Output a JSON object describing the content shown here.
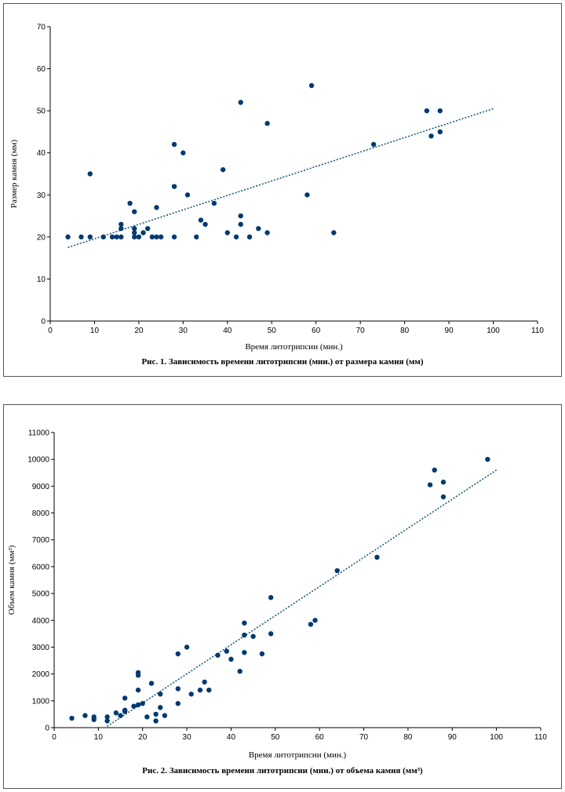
{
  "chart_data": [
    {
      "type": "scatter",
      "title": "Рис. 1. Зависимость времени литотрипсии (мин.) от размера камня (мм)",
      "xlabel": "Время литотрипсии (мин.)",
      "ylabel": "Размер камня (мм)",
      "xlim": [
        0,
        110
      ],
      "ylim": [
        0,
        70
      ],
      "xticks": [
        0,
        10,
        20,
        30,
        40,
        50,
        60,
        70,
        80,
        90,
        100,
        110
      ],
      "yticks": [
        0,
        10,
        20,
        30,
        40,
        50,
        60,
        70
      ],
      "color": "#003a70",
      "points": [
        [
          4,
          20
        ],
        [
          7,
          20
        ],
        [
          9,
          35
        ],
        [
          9,
          20
        ],
        [
          12,
          20
        ],
        [
          14,
          20
        ],
        [
          15,
          20
        ],
        [
          16,
          20
        ],
        [
          16,
          22
        ],
        [
          16,
          23
        ],
        [
          18,
          28
        ],
        [
          19,
          26
        ],
        [
          19,
          22
        ],
        [
          19,
          21
        ],
        [
          19,
          20
        ],
        [
          20,
          20
        ],
        [
          21,
          21
        ],
        [
          22,
          22
        ],
        [
          23,
          20
        ],
        [
          24,
          27
        ],
        [
          24,
          20
        ],
        [
          25,
          20
        ],
        [
          28,
          42
        ],
        [
          28,
          32
        ],
        [
          28,
          20
        ],
        [
          30,
          40
        ],
        [
          31,
          30
        ],
        [
          33,
          20
        ],
        [
          34,
          24
        ],
        [
          35,
          23
        ],
        [
          37,
          28
        ],
        [
          39,
          36
        ],
        [
          40,
          21
        ],
        [
          42,
          20
        ],
        [
          43,
          52
        ],
        [
          43,
          25
        ],
        [
          43,
          23
        ],
        [
          45,
          20
        ],
        [
          47,
          22
        ],
        [
          49,
          47
        ],
        [
          49,
          21
        ],
        [
          58,
          30
        ],
        [
          59,
          56
        ],
        [
          64,
          21
        ],
        [
          73,
          42
        ],
        [
          85,
          50
        ],
        [
          86,
          44
        ],
        [
          88,
          50
        ],
        [
          88,
          45
        ]
      ],
      "trendline": [
        [
          4,
          17.5
        ],
        [
          100,
          50.5
        ]
      ]
    },
    {
      "type": "scatter",
      "title": "Рис. 2. Зависимость времени литотрипсии (мин.) от объема камня (мм³)",
      "xlabel": "Время литотрипсии (мин.)",
      "ylabel": "Объем камня (мм³)",
      "xlim": [
        0,
        110
      ],
      "ylim": [
        0,
        11000
      ],
      "xticks": [
        0,
        10,
        20,
        30,
        40,
        50,
        60,
        70,
        80,
        90,
        100,
        110
      ],
      "yticks": [
        0,
        1000,
        2000,
        3000,
        4000,
        5000,
        6000,
        7000,
        8000,
        9000,
        10000,
        11000
      ],
      "color": "#003a70",
      "points": [
        [
          4,
          350
        ],
        [
          7,
          450
        ],
        [
          9,
          400
        ],
        [
          9,
          300
        ],
        [
          12,
          400
        ],
        [
          12,
          250
        ],
        [
          14,
          550
        ],
        [
          15,
          450
        ],
        [
          16,
          1100
        ],
        [
          16,
          650
        ],
        [
          16,
          600
        ],
        [
          18,
          800
        ],
        [
          19,
          2050
        ],
        [
          19,
          1950
        ],
        [
          19,
          1400
        ],
        [
          19,
          850
        ],
        [
          20,
          900
        ],
        [
          21,
          400
        ],
        [
          22,
          1650
        ],
        [
          23,
          500
        ],
        [
          23,
          250
        ],
        [
          24,
          1250
        ],
        [
          24,
          750
        ],
        [
          25,
          450
        ],
        [
          28,
          2750
        ],
        [
          28,
          1450
        ],
        [
          28,
          900
        ],
        [
          30,
          3000
        ],
        [
          31,
          1250
        ],
        [
          33,
          1400
        ],
        [
          34,
          1700
        ],
        [
          35,
          1400
        ],
        [
          37,
          2700
        ],
        [
          39,
          2850
        ],
        [
          40,
          2550
        ],
        [
          42,
          2100
        ],
        [
          43,
          3900
        ],
        [
          43,
          3450
        ],
        [
          43,
          2800
        ],
        [
          45,
          3400
        ],
        [
          47,
          2750
        ],
        [
          49,
          4850
        ],
        [
          49,
          3500
        ],
        [
          58,
          3850
        ],
        [
          59,
          4000
        ],
        [
          64,
          5850
        ],
        [
          73,
          6350
        ],
        [
          85,
          9050
        ],
        [
          86,
          9600
        ],
        [
          88,
          9150
        ],
        [
          88,
          8600
        ],
        [
          98,
          10000
        ]
      ],
      "trendline": [
        [
          12,
          50
        ],
        [
          100,
          9600
        ]
      ]
    }
  ]
}
